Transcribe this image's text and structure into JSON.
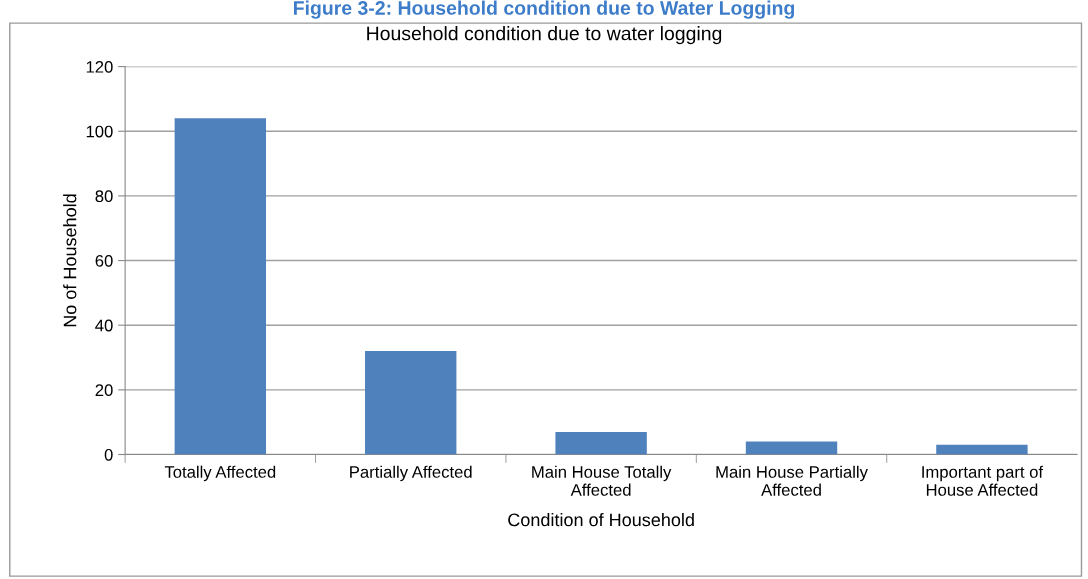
{
  "chart_data": {
    "type": "bar",
    "title": "Household condition due to water logging",
    "annotations": [
      "Figure 3-2: Household condition due to Water Logging"
    ],
    "xlabel": "Condition of Household",
    "ylabel": "No of Household",
    "categories": [
      "Totally Affected",
      "Partially Affected",
      "Main House Totally\nAffected",
      "Main House Partially\nAffected",
      "Important part of\nHouse Affected"
    ],
    "values": [
      104,
      32,
      7,
      4,
      3
    ],
    "color": "#4f81bd",
    "ylim": [
      0,
      120
    ],
    "yticks": [
      0,
      20,
      40,
      60,
      80,
      100,
      120
    ],
    "grid": "y",
    "legend": false
  }
}
